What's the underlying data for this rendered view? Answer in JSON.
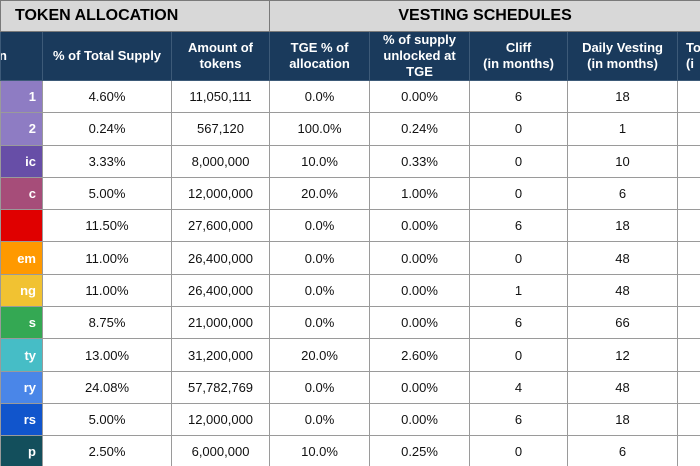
{
  "sections": {
    "token_allocation": "TOKEN ALLOCATION",
    "vesting_schedules": "VESTING SCHEDULES"
  },
  "headers": [
    "on",
    "% of Total Supply",
    "Amount of tokens",
    "TGE % of allocation",
    "% of supply unlocked at TGE",
    "Cliff\n(in months)",
    "Daily Vesting\n(in months)",
    "To\n(i"
  ],
  "rows": [
    {
      "category": "1",
      "color": "#8e7cc3",
      "pct": "4.60%",
      "amount": "11,050,111",
      "tge_pct": "0.0%",
      "unlocked": "0.00%",
      "cliff": "6",
      "vesting": "18"
    },
    {
      "category": "2",
      "color": "#8e7cc3",
      "pct": "0.24%",
      "amount": "567,120",
      "tge_pct": "100.0%",
      "unlocked": "0.24%",
      "cliff": "0",
      "vesting": "1"
    },
    {
      "category": "ic",
      "color": "#674ea7",
      "pct": "3.33%",
      "amount": "8,000,000",
      "tge_pct": "10.0%",
      "unlocked": "0.33%",
      "cliff": "0",
      "vesting": "10"
    },
    {
      "category": "c",
      "color": "#a64d79",
      "pct": "5.00%",
      "amount": "12,000,000",
      "tge_pct": "20.0%",
      "unlocked": "1.00%",
      "cliff": "0",
      "vesting": "6"
    },
    {
      "category": "",
      "color": "#e00000",
      "pct": "11.50%",
      "amount": "27,600,000",
      "tge_pct": "0.0%",
      "unlocked": "0.00%",
      "cliff": "6",
      "vesting": "18"
    },
    {
      "category": "em",
      "color": "#ff9900",
      "pct": "11.00%",
      "amount": "26,400,000",
      "tge_pct": "0.0%",
      "unlocked": "0.00%",
      "cliff": "0",
      "vesting": "48"
    },
    {
      "category": "ng",
      "color": "#f1c232",
      "pct": "11.00%",
      "amount": "26,400,000",
      "tge_pct": "0.0%",
      "unlocked": "0.00%",
      "cliff": "1",
      "vesting": "48"
    },
    {
      "category": "s",
      "color": "#34a853",
      "pct": "8.75%",
      "amount": "21,000,000",
      "tge_pct": "0.0%",
      "unlocked": "0.00%",
      "cliff": "6",
      "vesting": "66"
    },
    {
      "category": "ty",
      "color": "#46bdc6",
      "pct": "13.00%",
      "amount": "31,200,000",
      "tge_pct": "20.0%",
      "unlocked": "2.60%",
      "cliff": "0",
      "vesting": "12"
    },
    {
      "category": "ry",
      "color": "#4a86e8",
      "pct": "24.08%",
      "amount": "57,782,769",
      "tge_pct": "0.0%",
      "unlocked": "0.00%",
      "cliff": "4",
      "vesting": "48"
    },
    {
      "category": "rs",
      "color": "#1155cc",
      "pct": "5.00%",
      "amount": "12,000,000",
      "tge_pct": "0.0%",
      "unlocked": "0.00%",
      "cliff": "6",
      "vesting": "18"
    },
    {
      "category": "p",
      "color": "#134f5c",
      "pct": "2.50%",
      "amount": "6,000,000",
      "tge_pct": "10.0%",
      "unlocked": "0.25%",
      "cliff": "0",
      "vesting": "6"
    }
  ]
}
